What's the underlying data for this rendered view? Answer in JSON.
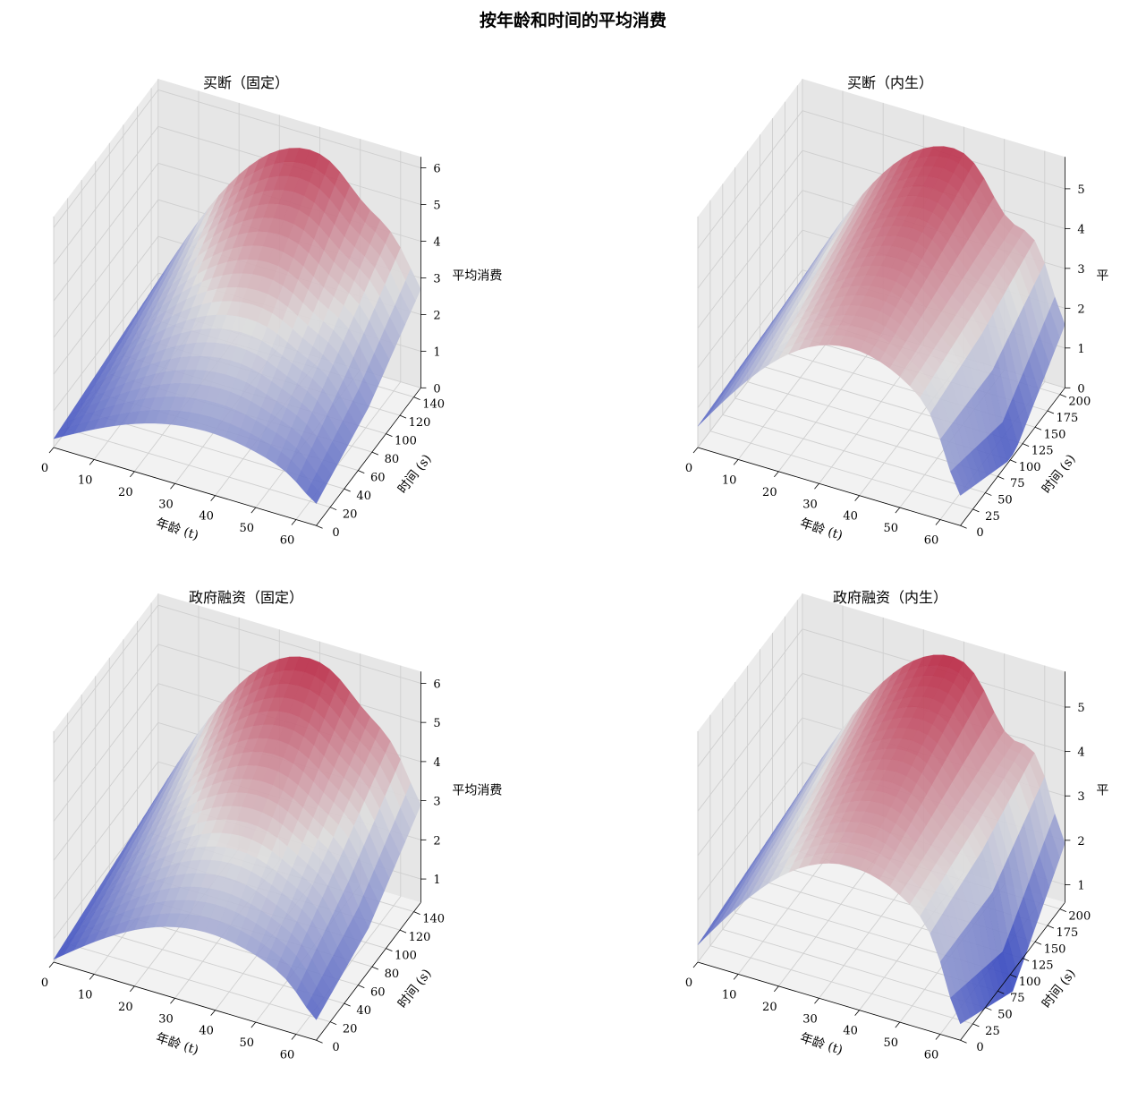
{
  "figure": {
    "suptitle": "按年龄和时间的平均消费",
    "colormap": {
      "name": "coolwarm",
      "low": "#3b4cc0",
      "mid": "#dddddd",
      "high": "#b40426"
    },
    "pane_color": "#f2f2f2",
    "grid_color": "#cfcfcf"
  },
  "chart_data": [
    {
      "type": "surface3d",
      "title": "买断（固定）",
      "xlabel": "年龄 (t)",
      "ylabel": "时间 (s)",
      "zlabel": "平均消费",
      "xlim": [
        0,
        65
      ],
      "ylim": [
        0,
        150
      ],
      "zlim": [
        0,
        6.3
      ],
      "xticks": [
        0,
        10,
        20,
        30,
        40,
        50,
        60
      ],
      "yticks": [
        0,
        20,
        40,
        60,
        80,
        100,
        120,
        140
      ],
      "zticks": [
        0,
        1,
        2,
        3,
        4,
        5,
        6
      ],
      "surface": {
        "age": [
          0,
          65
        ],
        "time": [
          0,
          150
        ],
        "z_young": 0.3,
        "z_peak": 5.6,
        "time_gain": 0.7,
        "late_drop": 0.6,
        "rim_dip": 0.4
      },
      "legend": "none"
    },
    {
      "type": "surface3d",
      "title": "买断（内生）",
      "xlabel": "年龄 (t)",
      "ylabel": "时间 (s)",
      "zlabel": "平",
      "xlim": [
        0,
        65
      ],
      "ylim": [
        0,
        210
      ],
      "zlim": [
        0,
        5.8
      ],
      "xticks": [
        0,
        10,
        20,
        30,
        40,
        50,
        60
      ],
      "yticks": [
        0,
        25,
        50,
        75,
        100,
        125,
        150,
        175,
        200
      ],
      "zticks": [
        0,
        1,
        2,
        3,
        4,
        5
      ],
      "surface": {
        "age": [
          0,
          65
        ],
        "time": [
          0,
          210
        ],
        "z_young": 0.3,
        "z_peak": 5.2,
        "time_gain": 0.3,
        "late_drop": 2.4,
        "rim_dip": 0.8
      },
      "legend": "none"
    },
    {
      "type": "surface3d",
      "title": "政府融资（固定）",
      "xlabel": "年龄 (t)",
      "ylabel": "时间 (s)",
      "zlabel": "平均消费",
      "xlim": [
        0,
        65
      ],
      "ylim": [
        0,
        150
      ],
      "zlim": [
        0.4,
        6.3
      ],
      "xticks": [
        0,
        10,
        20,
        30,
        40,
        50,
        60
      ],
      "yticks": [
        0,
        20,
        40,
        60,
        80,
        100,
        120,
        140
      ],
      "zticks": [
        1,
        2,
        3,
        4,
        5,
        6
      ],
      "surface": {
        "age": [
          0,
          65
        ],
        "time": [
          0,
          150
        ],
        "z_young": 0.7,
        "z_peak": 5.8,
        "time_gain": 0.6,
        "late_drop": 0.8,
        "rim_dip": 0.3
      },
      "legend": "none"
    },
    {
      "type": "surface3d",
      "title": "政府融资（内生）",
      "xlabel": "年龄 (t)",
      "ylabel": "时间 (s)",
      "zlabel": "平",
      "xlim": [
        0,
        65
      ],
      "ylim": [
        0,
        210
      ],
      "zlim": [
        0.6,
        5.8
      ],
      "xticks": [
        0,
        10,
        20,
        30,
        40,
        50,
        60
      ],
      "yticks": [
        0,
        25,
        50,
        75,
        100,
        125,
        150,
        175,
        200
      ],
      "zticks": [
        1,
        2,
        3,
        4,
        5
      ],
      "surface": {
        "age": [
          0,
          65
        ],
        "time": [
          0,
          210
        ],
        "z_young": 1.0,
        "z_peak": 5.4,
        "time_gain": 0.3,
        "late_drop": 2.6,
        "rim_dip": 0.9
      },
      "legend": "none"
    }
  ]
}
